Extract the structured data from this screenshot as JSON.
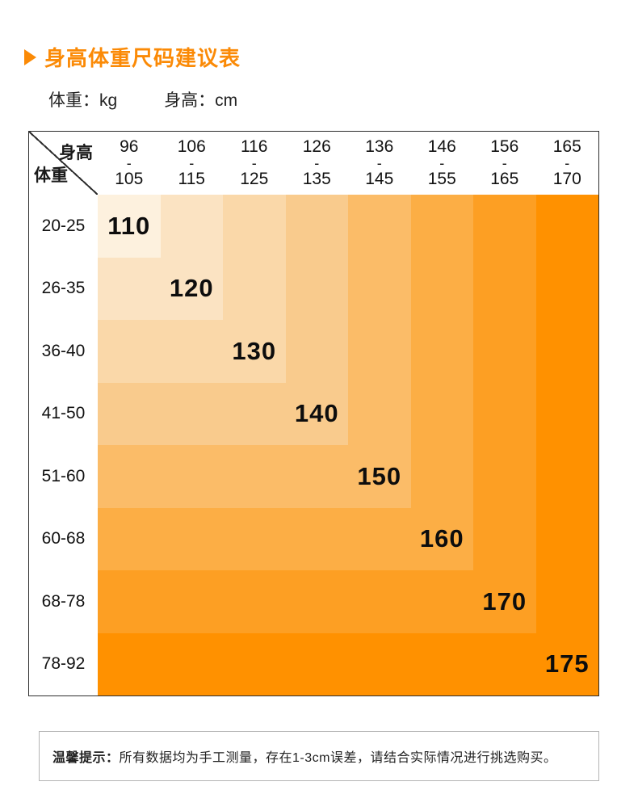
{
  "header": {
    "title": "身高体重尺码建议表",
    "accent_color": "#FB8A06"
  },
  "units": {
    "weight": "体重：kg",
    "height": "身高：cm"
  },
  "table": {
    "corner": {
      "height_label": "身高",
      "weight_label": "体重"
    },
    "height_ranges": [
      [
        "96",
        "105"
      ],
      [
        "106",
        "115"
      ],
      [
        "116",
        "125"
      ],
      [
        "126",
        "135"
      ],
      [
        "136",
        "145"
      ],
      [
        "146",
        "155"
      ],
      [
        "156",
        "165"
      ],
      [
        "165",
        "170"
      ]
    ],
    "weight_ranges": [
      "20-25",
      "26-35",
      "36-40",
      "41-50",
      "51-60",
      "60-68",
      "68-78",
      "78-92"
    ],
    "sizes": [
      "110",
      "120",
      "130",
      "140",
      "150",
      "160",
      "170",
      "175"
    ],
    "band_colors": [
      "#FDF1DE",
      "#FBE3C2",
      "#FAD8A9",
      "#F9CB8D",
      "#FBBC68",
      "#FCAE45",
      "#FD9F23",
      "#FF9100"
    ],
    "border_color": "#2e2e2e"
  },
  "tip": {
    "label": "温馨提示：",
    "text": "所有数据均为手工测量，存在1-3cm误差，请结合实际情况进行挑选购买。"
  },
  "chart_data": {
    "type": "heatmap",
    "title": "身高体重尺码建议表",
    "xlabel": "身高 (cm)",
    "ylabel": "体重 (kg)",
    "x_categories": [
      "96-105",
      "106-115",
      "116-125",
      "126-135",
      "136-145",
      "146-155",
      "156-165",
      "165-170"
    ],
    "y_categories": [
      "20-25",
      "26-35",
      "36-40",
      "41-50",
      "51-60",
      "60-68",
      "68-78",
      "78-92"
    ],
    "diagonal_sizes": [
      110,
      120,
      130,
      140,
      150,
      160,
      170,
      175
    ],
    "values": [
      [
        110,
        120,
        130,
        140,
        150,
        160,
        170,
        175
      ],
      [
        120,
        120,
        130,
        140,
        150,
        160,
        170,
        175
      ],
      [
        130,
        130,
        130,
        140,
        150,
        160,
        170,
        175
      ],
      [
        140,
        140,
        140,
        140,
        150,
        160,
        170,
        175
      ],
      [
        150,
        150,
        150,
        150,
        150,
        160,
        170,
        175
      ],
      [
        160,
        160,
        160,
        160,
        160,
        160,
        170,
        175
      ],
      [
        170,
        170,
        170,
        170,
        170,
        170,
        170,
        175
      ],
      [
        175,
        175,
        175,
        175,
        175,
        175,
        175,
        175
      ]
    ],
    "legend_position": "none",
    "grid": false
  }
}
